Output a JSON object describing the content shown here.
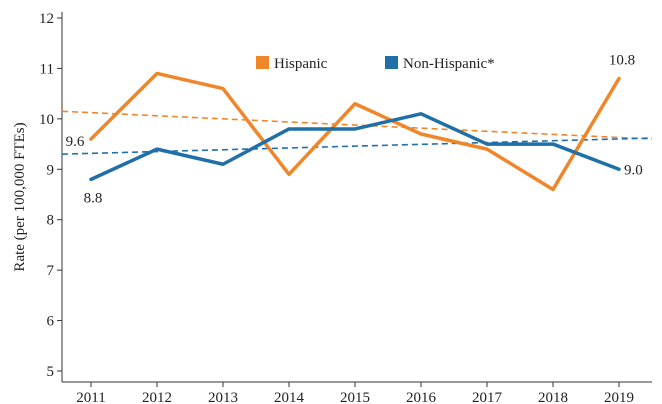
{
  "chart_data": {
    "type": "line",
    "title": "",
    "xlabel": "",
    "ylabel": "Rate (per 100,000 FTEs)",
    "x": [
      2011,
      2012,
      2013,
      2014,
      2015,
      2016,
      2017,
      2018,
      2019
    ],
    "ylim": [
      5,
      12
    ],
    "yticks": [
      5,
      6,
      7,
      8,
      9,
      10,
      11,
      12
    ],
    "grid": false,
    "legend_position": "top",
    "series": [
      {
        "name": "Hispanic",
        "color": "#F0862A",
        "values": [
          9.6,
          10.9,
          10.6,
          8.9,
          10.3,
          9.7,
          9.4,
          8.6,
          10.8
        ],
        "trend": [
          10.15,
          9.6
        ]
      },
      {
        "name": "Non-Hispanic*",
        "color": "#1F6FA8",
        "values": [
          8.8,
          9.4,
          9.1,
          9.8,
          9.8,
          10.1,
          9.5,
          9.5,
          9.0
        ],
        "trend": [
          9.3,
          9.62
        ]
      }
    ],
    "data_labels": [
      {
        "series": 0,
        "index": 0,
        "text": "9.6"
      },
      {
        "series": 1,
        "index": 0,
        "text": "8.8"
      },
      {
        "series": 0,
        "index": 8,
        "text": "10.8"
      },
      {
        "series": 1,
        "index": 8,
        "text": "9.0"
      }
    ]
  }
}
